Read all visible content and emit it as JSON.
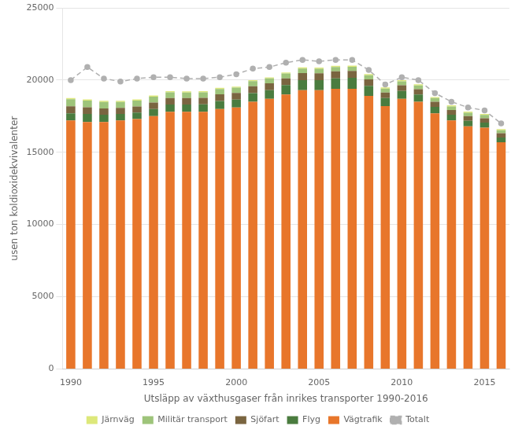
{
  "chart_data": {
    "type": "bar",
    "stacked": true,
    "grid": true,
    "legend": "bottom",
    "xlabel": "Utsläpp av växthusgaser från inrikes transporter 1990-2016",
    "ylabel": "usen ton koldioxidekvivalenter",
    "categories": [
      "1990",
      null,
      null,
      null,
      null,
      "1995",
      null,
      null,
      null,
      null,
      "2000",
      null,
      null,
      null,
      null,
      "2005",
      null,
      null,
      null,
      null,
      "2010",
      null,
      null,
      null,
      null,
      "2015",
      null
    ],
    "ylim": [
      0,
      25000
    ],
    "yticks": [
      0,
      5000,
      10000,
      15000,
      20000,
      25000
    ],
    "series": [
      {
        "name": "Vägtrafik",
        "color": "#e8762b",
        "values": [
          17200,
          17100,
          17100,
          17200,
          17300,
          17500,
          17800,
          17800,
          17800,
          18000,
          18100,
          18500,
          18700,
          19000,
          19300,
          19300,
          19400,
          19400,
          18900,
          18200,
          18700,
          18500,
          17700,
          17200,
          16800,
          16700,
          15700
        ]
      },
      {
        "name": "Flyg",
        "color": "#4a7c3f",
        "values": [
          500,
          550,
          500,
          450,
          450,
          500,
          500,
          500,
          520,
          550,
          550,
          600,
          600,
          650,
          700,
          700,
          720,
          750,
          700,
          550,
          550,
          500,
          450,
          400,
          380,
          350,
          320
        ]
      },
      {
        "name": "Sjöfart",
        "color": "#7a6540",
        "values": [
          480,
          460,
          440,
          420,
          420,
          440,
          450,
          450,
          450,
          460,
          460,
          470,
          470,
          470,
          480,
          470,
          480,
          480,
          450,
          390,
          390,
          370,
          350,
          330,
          320,
          310,
          300
        ]
      },
      {
        "name": "Militär transport",
        "color": "#9ec47a",
        "values": [
          490,
          470,
          450,
          420,
          410,
          410,
          400,
          390,
          380,
          370,
          360,
          350,
          340,
          330,
          320,
          310,
          300,
          290,
          280,
          270,
          270,
          260,
          250,
          240,
          230,
          220,
          210
        ]
      },
      {
        "name": "Järnväg",
        "color": "#dde87a",
        "values": [
          80,
          80,
          80,
          80,
          80,
          80,
          80,
          80,
          80,
          80,
          80,
          80,
          80,
          80,
          80,
          80,
          80,
          80,
          80,
          80,
          80,
          80,
          80,
          80,
          80,
          80,
          80
        ]
      },
      {
        "name": "Totalt",
        "type": "line",
        "color": "#b0b0b0",
        "line_style": "dashed",
        "marker": "circle",
        "values": [
          20000,
          20900,
          20100,
          19900,
          20100,
          20200,
          20200,
          20100,
          20100,
          20200,
          20400,
          20800,
          20900,
          21200,
          21400,
          21300,
          21400,
          21400,
          20700,
          19700,
          20200,
          20000,
          19100,
          18500,
          18100,
          17900,
          17000
        ]
      }
    ]
  }
}
